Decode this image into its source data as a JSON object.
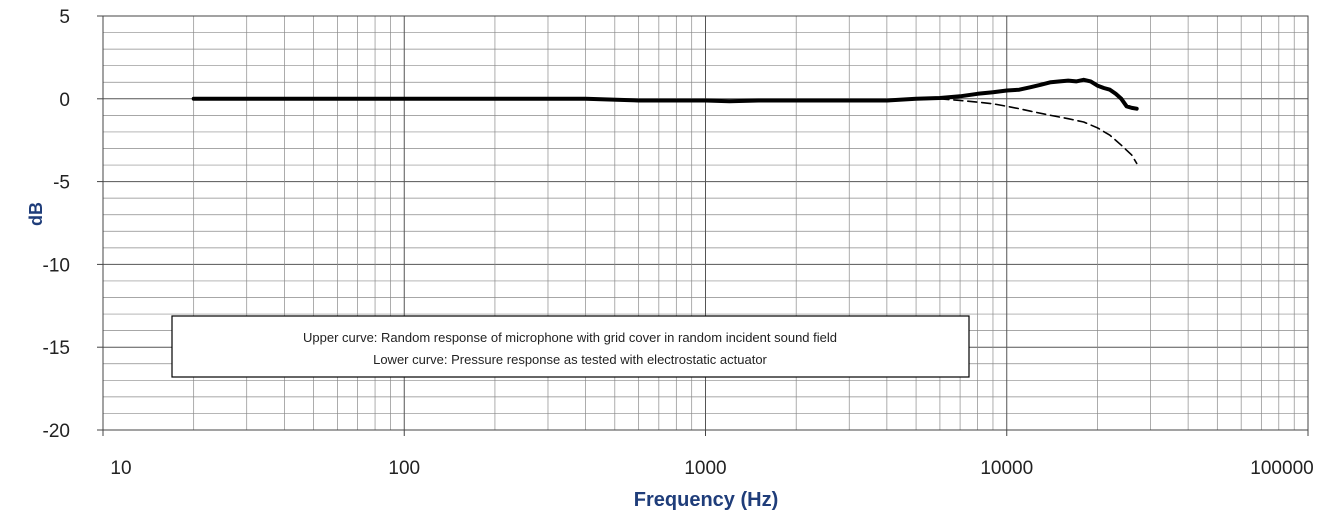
{
  "chart_data": {
    "type": "line",
    "xlabel": "Frequency (Hz)",
    "ylabel": "dB",
    "x_scale": "log",
    "xlim": [
      10,
      100000
    ],
    "ylim": [
      -20,
      5
    ],
    "x_ticks": [
      10,
      100,
      1000,
      10000,
      100000
    ],
    "x_tick_labels": [
      "10",
      "100",
      "1000",
      "10000",
      "100000"
    ],
    "y_ticks": [
      5,
      0,
      -5,
      -10,
      -15,
      -20
    ],
    "y_tick_labels": [
      "5",
      "0",
      "-5",
      "-10",
      "-15",
      "-20"
    ],
    "grid": true,
    "annotation": [
      "Upper curve: Random response of microphone with grid cover in random incident sound field",
      "Lower curve: Pressure response as tested with electrostatic actuator"
    ],
    "series": [
      {
        "style": "solid",
        "x": [
          20,
          50,
          100,
          200,
          400,
          600,
          800,
          1000,
          1200,
          1500,
          2000,
          3000,
          4000,
          5000,
          6000,
          7000,
          8000,
          9000,
          10000,
          11000,
          12000,
          13000,
          14000,
          15000,
          16000,
          17000,
          18000,
          19000,
          20000,
          21000,
          22000,
          23000,
          24000,
          25000,
          26000,
          27000
        ],
        "y": [
          0.0,
          0.0,
          0.0,
          0.0,
          0.0,
          -0.1,
          -0.1,
          -0.1,
          -0.15,
          -0.1,
          -0.1,
          -0.1,
          -0.1,
          0.0,
          0.05,
          0.15,
          0.3,
          0.4,
          0.5,
          0.55,
          0.7,
          0.85,
          1.0,
          1.05,
          1.1,
          1.05,
          1.15,
          1.05,
          0.8,
          0.65,
          0.55,
          0.3,
          0.0,
          -0.45,
          -0.55,
          -0.6
        ]
      },
      {
        "style": "dashed",
        "x": [
          6000,
          7000,
          8000,
          9000,
          10000,
          11000,
          12000,
          14000,
          16000,
          18000,
          20000,
          22000,
          24000,
          26000,
          27000
        ],
        "y": [
          0.0,
          -0.1,
          -0.2,
          -0.3,
          -0.45,
          -0.6,
          -0.75,
          -1.0,
          -1.2,
          -1.4,
          -1.75,
          -2.2,
          -2.8,
          -3.4,
          -3.9
        ]
      }
    ]
  }
}
